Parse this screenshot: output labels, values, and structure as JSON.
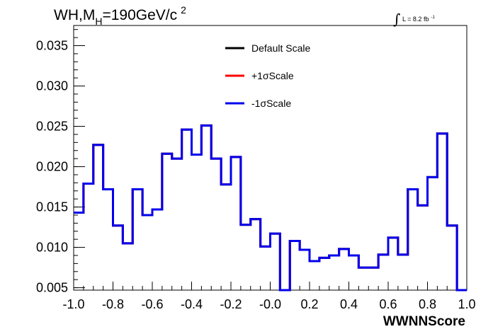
{
  "chart_data": {
    "type": "line",
    "style": "step-histogram",
    "title": {
      "main": "WH,M",
      "subscript": "H",
      "rest": "=190GeV/c",
      "superscript": "2"
    },
    "luminosity": {
      "integral": "∫",
      "label": "L = 8.2 fb",
      "superscript": "-1"
    },
    "xlabel": "WWNNScore",
    "ylabel": "",
    "xlim": [
      -1.0,
      1.0
    ],
    "ylim": [
      0.0047,
      0.0375
    ],
    "x_ticks": [
      {
        "value": -1.0,
        "label": "-1.0"
      },
      {
        "value": -0.8,
        "label": "-0.8"
      },
      {
        "value": -0.6,
        "label": "-0.6"
      },
      {
        "value": -0.4,
        "label": "-0.4"
      },
      {
        "value": -0.2,
        "label": "-0.2"
      },
      {
        "value": 0.0,
        "label": "-0.0"
      },
      {
        "value": 0.2,
        "label": "0.2"
      },
      {
        "value": 0.4,
        "label": "0.4"
      },
      {
        "value": 0.6,
        "label": "0.6"
      },
      {
        "value": 0.8,
        "label": "0.8"
      },
      {
        "value": 1.0,
        "label": "1.0"
      }
    ],
    "y_ticks": [
      {
        "value": 0.005,
        "label": "0.005"
      },
      {
        "value": 0.01,
        "label": "0.010"
      },
      {
        "value": 0.015,
        "label": "0.015"
      },
      {
        "value": 0.02,
        "label": "0.020"
      },
      {
        "value": 0.025,
        "label": "0.025"
      },
      {
        "value": 0.03,
        "label": "0.030"
      },
      {
        "value": 0.035,
        "label": "0.035"
      }
    ],
    "grid": false,
    "legend_position": "top-center",
    "bin_edges": [
      -1.0,
      -0.95,
      -0.9,
      -0.85,
      -0.8,
      -0.75,
      -0.7,
      -0.65,
      -0.6,
      -0.55,
      -0.5,
      -0.45,
      -0.4,
      -0.35,
      -0.3,
      -0.25,
      -0.2,
      -0.15,
      -0.1,
      -0.05,
      0.0,
      0.05,
      0.1,
      0.15,
      0.2,
      0.25,
      0.3,
      0.35,
      0.4,
      0.45,
      0.5,
      0.55,
      0.6,
      0.65,
      0.7,
      0.75,
      0.8,
      0.85,
      0.9,
      0.95,
      1.0
    ],
    "series": [
      {
        "name": "Default Scale",
        "color": "#000000",
        "values": [
          0.0143,
          0.0179,
          0.0227,
          0.0172,
          0.0127,
          0.0105,
          0.0172,
          0.014,
          0.0147,
          0.0216,
          0.021,
          0.0246,
          0.0215,
          0.0251,
          0.021,
          0.0178,
          0.0212,
          0.0128,
          0.0135,
          0.0101,
          0.0117,
          0.0047,
          0.0108,
          0.0097,
          0.0083,
          0.0087,
          0.009,
          0.0098,
          0.009,
          0.0075,
          0.0075,
          0.0091,
          0.0112,
          0.0091,
          0.0172,
          0.0152,
          0.0187,
          0.0241,
          0.0127,
          0.0047
        ]
      },
      {
        "name": "+1σScale",
        "color": "#ff0000",
        "values": [
          0.0143,
          0.0179,
          0.0227,
          0.0172,
          0.0127,
          0.0105,
          0.0172,
          0.014,
          0.0147,
          0.0216,
          0.021,
          0.0246,
          0.0215,
          0.0251,
          0.021,
          0.0178,
          0.0212,
          0.0128,
          0.0135,
          0.0101,
          0.0117,
          0.0047,
          0.0108,
          0.0097,
          0.0083,
          0.0087,
          0.009,
          0.0098,
          0.009,
          0.0075,
          0.0075,
          0.0091,
          0.0112,
          0.0091,
          0.0172,
          0.0152,
          0.0187,
          0.0241,
          0.0127,
          0.0047
        ]
      },
      {
        "name": "-1σScale",
        "color": "#0000ee",
        "values": [
          0.0143,
          0.0179,
          0.0227,
          0.0172,
          0.0127,
          0.0105,
          0.0172,
          0.014,
          0.0147,
          0.0216,
          0.021,
          0.0246,
          0.0215,
          0.0251,
          0.021,
          0.0178,
          0.0212,
          0.0128,
          0.0135,
          0.0101,
          0.0117,
          0.0047,
          0.0108,
          0.0097,
          0.0083,
          0.0087,
          0.009,
          0.0098,
          0.009,
          0.0075,
          0.0075,
          0.0091,
          0.0112,
          0.0091,
          0.0172,
          0.0152,
          0.0187,
          0.0241,
          0.0127,
          0.0047
        ]
      }
    ]
  }
}
